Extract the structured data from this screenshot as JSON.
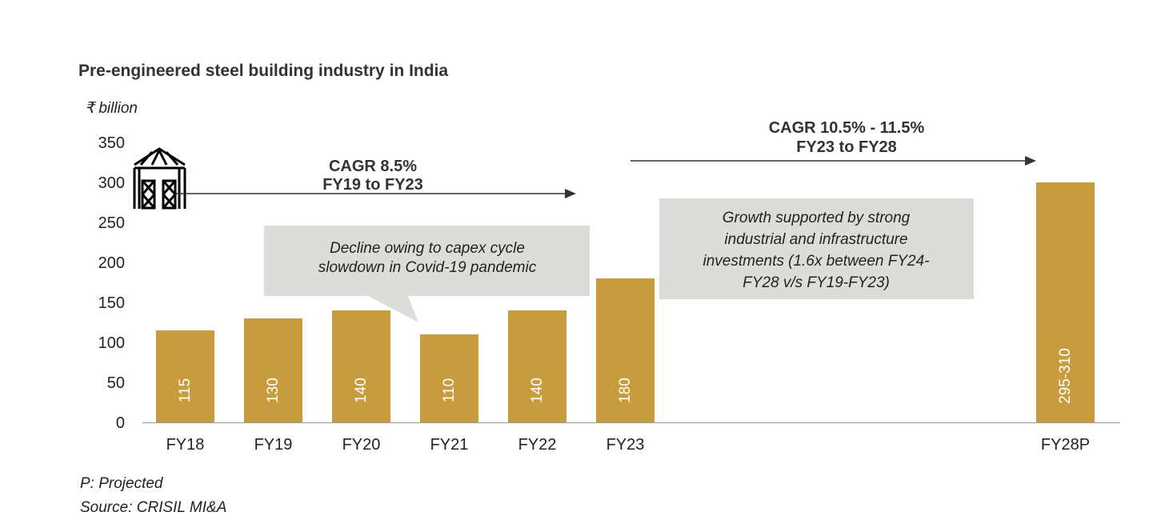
{
  "chart_data": {
    "type": "bar",
    "title": "Pre-engineered steel building industry in India",
    "ylabel": "₹ billion",
    "xlabel": "",
    "ylim": [
      0,
      350
    ],
    "yticks": [
      0,
      50,
      100,
      150,
      200,
      250,
      300,
      350
    ],
    "categories": [
      "FY18",
      "FY19",
      "FY20",
      "FY21",
      "FY22",
      "FY23",
      "FY28P"
    ],
    "values": [
      115,
      130,
      140,
      110,
      140,
      180,
      300
    ],
    "data_labels": [
      "115",
      "130",
      "140",
      "110",
      "140",
      "180",
      "295-310"
    ],
    "grid": false,
    "bar_color": "#C89B3C",
    "annotations": {
      "cagr1": [
        "CAGR 8.5%",
        "FY19 to FY23"
      ],
      "cagr2": [
        "CAGR 10.5% - 11.5%",
        "FY23 to FY28"
      ],
      "callout1": [
        "Decline owing to capex cycle",
        "slowdown in Covid-19 pandemic"
      ],
      "callout2": [
        "Growth supported by strong",
        "industrial and infrastructure",
        "investments (1.6x between FY24-",
        "FY28 v/s FY19-FY23)"
      ]
    },
    "footnotes": [
      "P: Projected",
      "Source: CRISIL MI&A"
    ]
  }
}
